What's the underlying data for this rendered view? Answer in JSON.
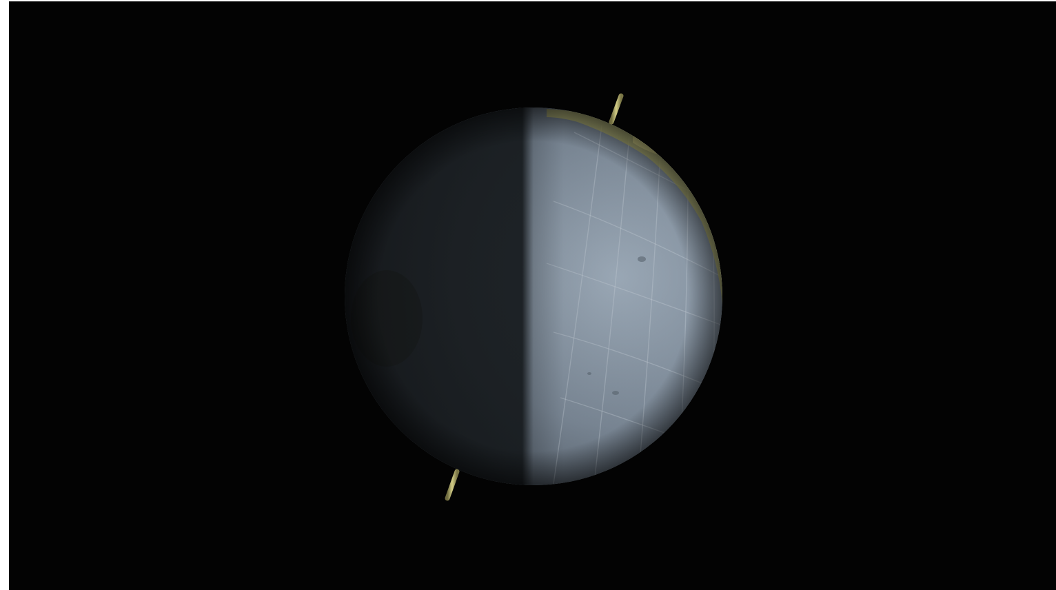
{
  "scene": {
    "subject": "globe-icon",
    "colors": {
      "space": "#030303",
      "ocean_lit": "#8e9cab",
      "ocean_shadow": "#1a1e22",
      "land": "#b7b468",
      "axis": "#c8c27a",
      "grid": "#c9d2db"
    }
  }
}
